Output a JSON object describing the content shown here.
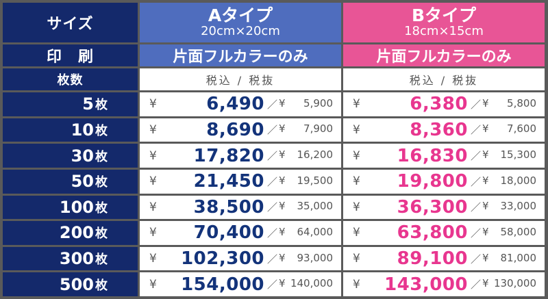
{
  "header": {
    "size_label": "サイズ",
    "print_label": "印　刷",
    "count_label": "枚数",
    "type_a": {
      "title": "Aタイプ",
      "size": "20cm×20cm",
      "print": "片面フルカラーのみ"
    },
    "type_b": {
      "title": "Bタイプ",
      "size": "18cm×15cm",
      "print": "片面フルカラーのみ"
    },
    "tax_label": "税込 / 税抜"
  },
  "symbols": {
    "yen": "¥",
    "slash": "／"
  },
  "unit": "枚",
  "rows": [
    {
      "qty": "5",
      "a_incl": "6,490",
      "a_excl": "5,900",
      "b_incl": "6,380",
      "b_excl": "5,800"
    },
    {
      "qty": "10",
      "a_incl": "8,690",
      "a_excl": "7,900",
      "b_incl": "8,360",
      "b_excl": "7,600"
    },
    {
      "qty": "30",
      "a_incl": "17,820",
      "a_excl": "16,200",
      "b_incl": "16,830",
      "b_excl": "15,300"
    },
    {
      "qty": "50",
      "a_incl": "21,450",
      "a_excl": "19,500",
      "b_incl": "19,800",
      "b_excl": "18,000"
    },
    {
      "qty": "100",
      "a_incl": "38,500",
      "a_excl": "35,000",
      "b_incl": "36,300",
      "b_excl": "33,000"
    },
    {
      "qty": "200",
      "a_incl": "70,400",
      "a_excl": "64,000",
      "b_incl": "63,800",
      "b_excl": "58,000"
    },
    {
      "qty": "300",
      "a_incl": "102,300",
      "a_excl": "93,000",
      "b_incl": "89,100",
      "b_excl": "81,000"
    },
    {
      "qty": "500",
      "a_incl": "154,000",
      "a_excl": "140,000",
      "b_incl": "143,000",
      "b_excl": "130,000"
    }
  ],
  "colors": {
    "navy": "#14296b",
    "blue": "#4f6dbe",
    "pink": "#e85596",
    "price_a": "#13337a",
    "price_b": "#e8368f"
  }
}
